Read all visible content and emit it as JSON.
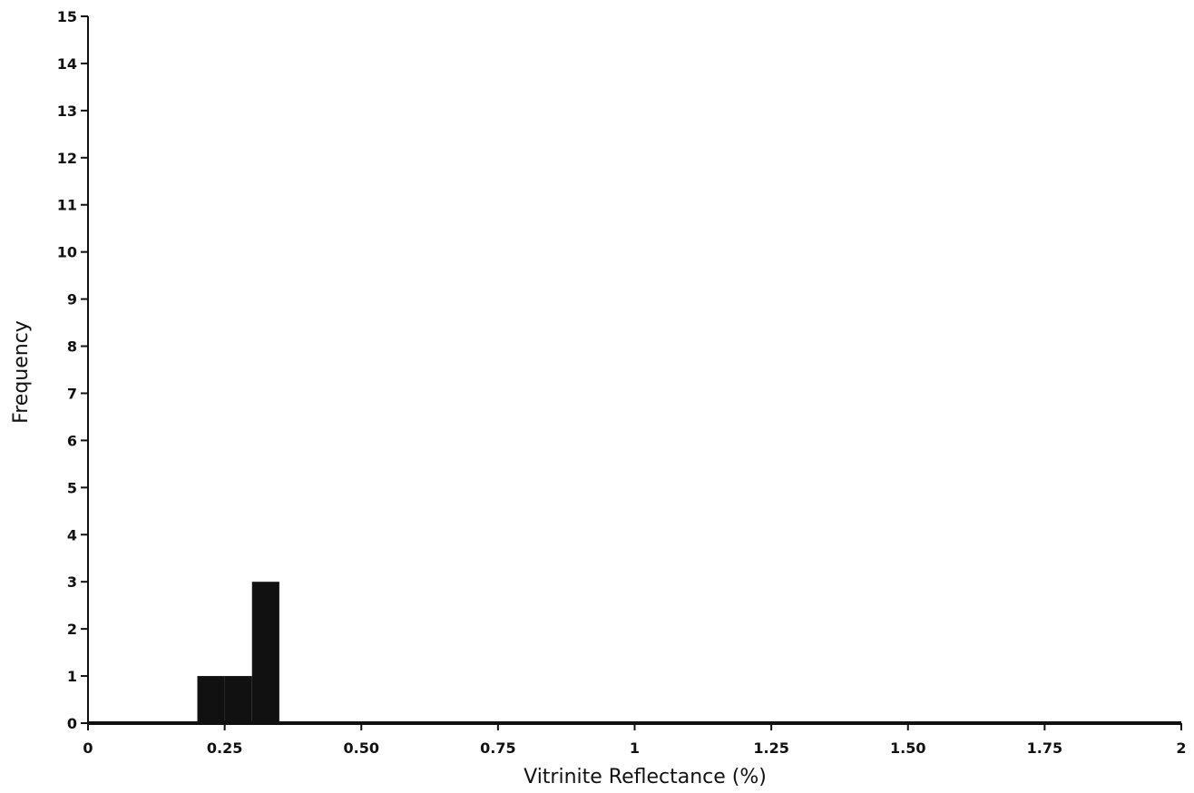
{
  "chart_data": {
    "type": "bar",
    "title": "",
    "xlabel": "Vitrinite Reflectance (%)",
    "ylabel": "Frequency",
    "xlim": [
      0,
      2
    ],
    "ylim": [
      0,
      15
    ],
    "bin_width": 0.05,
    "bins": [
      {
        "x_start": 0.2,
        "x_end": 0.25,
        "value": 1
      },
      {
        "x_start": 0.25,
        "x_end": 0.3,
        "value": 1
      },
      {
        "x_start": 0.3,
        "x_end": 0.35,
        "value": 3
      }
    ],
    "x_ticks": [
      {
        "value": 0,
        "label": "0"
      },
      {
        "value": 0.25,
        "label": "0.25"
      },
      {
        "value": 0.5,
        "label": "0.50"
      },
      {
        "value": 0.75,
        "label": "0.75"
      },
      {
        "value": 1,
        "label": "1"
      },
      {
        "value": 1.25,
        "label": "1.25"
      },
      {
        "value": 1.5,
        "label": "1.50"
      },
      {
        "value": 1.75,
        "label": "1.75"
      },
      {
        "value": 2,
        "label": "2"
      }
    ],
    "y_ticks": [
      {
        "value": 0,
        "label": "0"
      },
      {
        "value": 1,
        "label": "1"
      },
      {
        "value": 2,
        "label": "2"
      },
      {
        "value": 3,
        "label": "3"
      },
      {
        "value": 4,
        "label": "4"
      },
      {
        "value": 5,
        "label": "5"
      },
      {
        "value": 6,
        "label": "6"
      },
      {
        "value": 7,
        "label": "7"
      },
      {
        "value": 8,
        "label": "8"
      },
      {
        "value": 9,
        "label": "9"
      },
      {
        "value": 10,
        "label": "10"
      },
      {
        "value": 11,
        "label": "11"
      },
      {
        "value": 12,
        "label": "12"
      },
      {
        "value": 13,
        "label": "13"
      },
      {
        "value": 14,
        "label": "14"
      },
      {
        "value": 15,
        "label": "15"
      }
    ],
    "grid": false,
    "colors": {
      "bars": "#111111",
      "axes": "#111111",
      "background": "#ffffff"
    }
  }
}
